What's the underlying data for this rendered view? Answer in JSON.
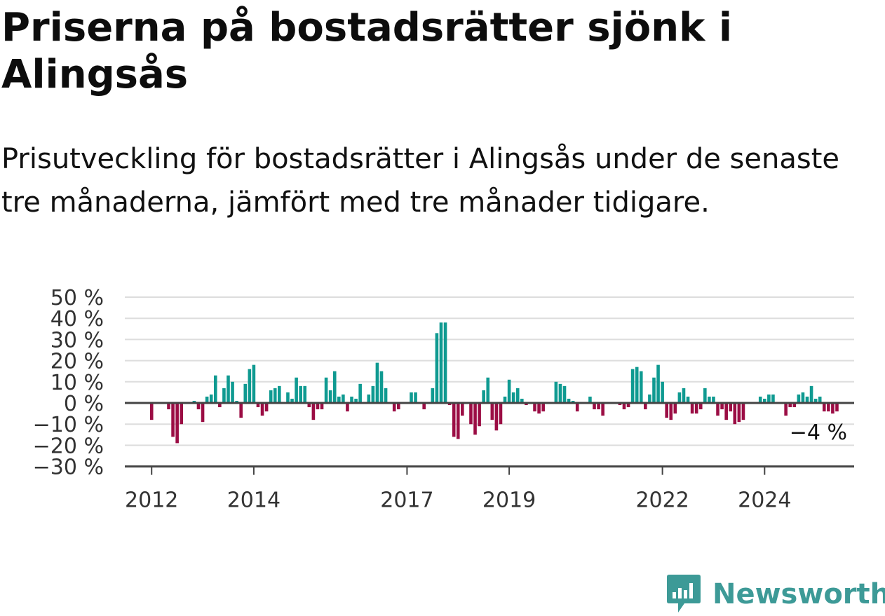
{
  "title": "Priserna på bostadsrätter sjönk i Alingsås",
  "subtitle": "Prisutveckling för bostadsrätter i Alingsås under de senaste tre månaderna, jämfört med tre månader tidigare.",
  "brand": {
    "name": "Newsworthy",
    "icon": "newsworthy-logo-icon"
  },
  "colors": {
    "positive": "#0f9a91",
    "negative": "#9b0d44",
    "grid": "#dddddd",
    "axis": "#444444"
  },
  "chart_data": {
    "type": "bar",
    "title": "Priserna på bostadsrätter sjönk i Alingsås",
    "xlabel": "",
    "ylabel": "",
    "x_start": "2011-07",
    "ylim": [
      -30,
      50
    ],
    "yticks": [
      50,
      40,
      30,
      20,
      10,
      0,
      -10,
      -20,
      -30
    ],
    "ytick_labels": [
      "50 %",
      "40 %",
      "30 %",
      "20 %",
      "10 %",
      "0 %",
      "−10 %",
      "−20 %",
      "−30 %"
    ],
    "xtick_labels": [
      {
        "label": "2012",
        "month": "2012-01"
      },
      {
        "label": "2014",
        "month": "2014-01"
      },
      {
        "label": "2017",
        "month": "2017-01"
      },
      {
        "label": "2019",
        "month": "2019-01"
      },
      {
        "label": "2022",
        "month": "2022-01"
      },
      {
        "label": "2024",
        "month": "2024-01"
      }
    ],
    "grid": true,
    "end_label": "−4 %",
    "values": [
      null,
      null,
      null,
      null,
      null,
      null,
      -8,
      null,
      null,
      null,
      -3,
      -16,
      -19,
      -10,
      null,
      null,
      1,
      -3,
      -9,
      3,
      4,
      13,
      -2,
      7,
      13,
      10,
      1,
      -7,
      9,
      16,
      18,
      -2,
      -6,
      -4,
      6,
      7,
      8,
      null,
      5,
      2,
      12,
      8,
      8,
      -2,
      -8,
      -3,
      -3,
      12,
      6,
      15,
      3,
      4,
      -4,
      3,
      2,
      9,
      null,
      4,
      8,
      19,
      15,
      7,
      null,
      -4,
      -3,
      null,
      null,
      5,
      5,
      null,
      -3,
      null,
      7,
      33,
      38,
      38,
      -1,
      -16,
      -17,
      -6,
      null,
      -10,
      -15,
      -11,
      6,
      12,
      -8,
      -13,
      -10,
      3,
      11,
      5,
      7,
      2,
      -1,
      null,
      -4,
      -5,
      -4,
      null,
      null,
      10,
      9,
      8,
      2,
      1,
      -4,
      null,
      null,
      3,
      -3,
      -3,
      -6,
      null,
      null,
      null,
      -1,
      -3,
      -2,
      16,
      17,
      15,
      -3,
      4,
      12,
      18,
      10,
      -7,
      -8,
      -5,
      5,
      7,
      3,
      -5,
      -5,
      -3,
      7,
      3,
      3,
      -6,
      -3,
      -8,
      -4,
      -10,
      -9,
      -8,
      null,
      null,
      null,
      3,
      2,
      4,
      4,
      null,
      null,
      -6,
      -2,
      -2,
      4,
      5,
      3,
      8,
      2,
      3,
      -4,
      -4,
      -5,
      -4
    ]
  }
}
